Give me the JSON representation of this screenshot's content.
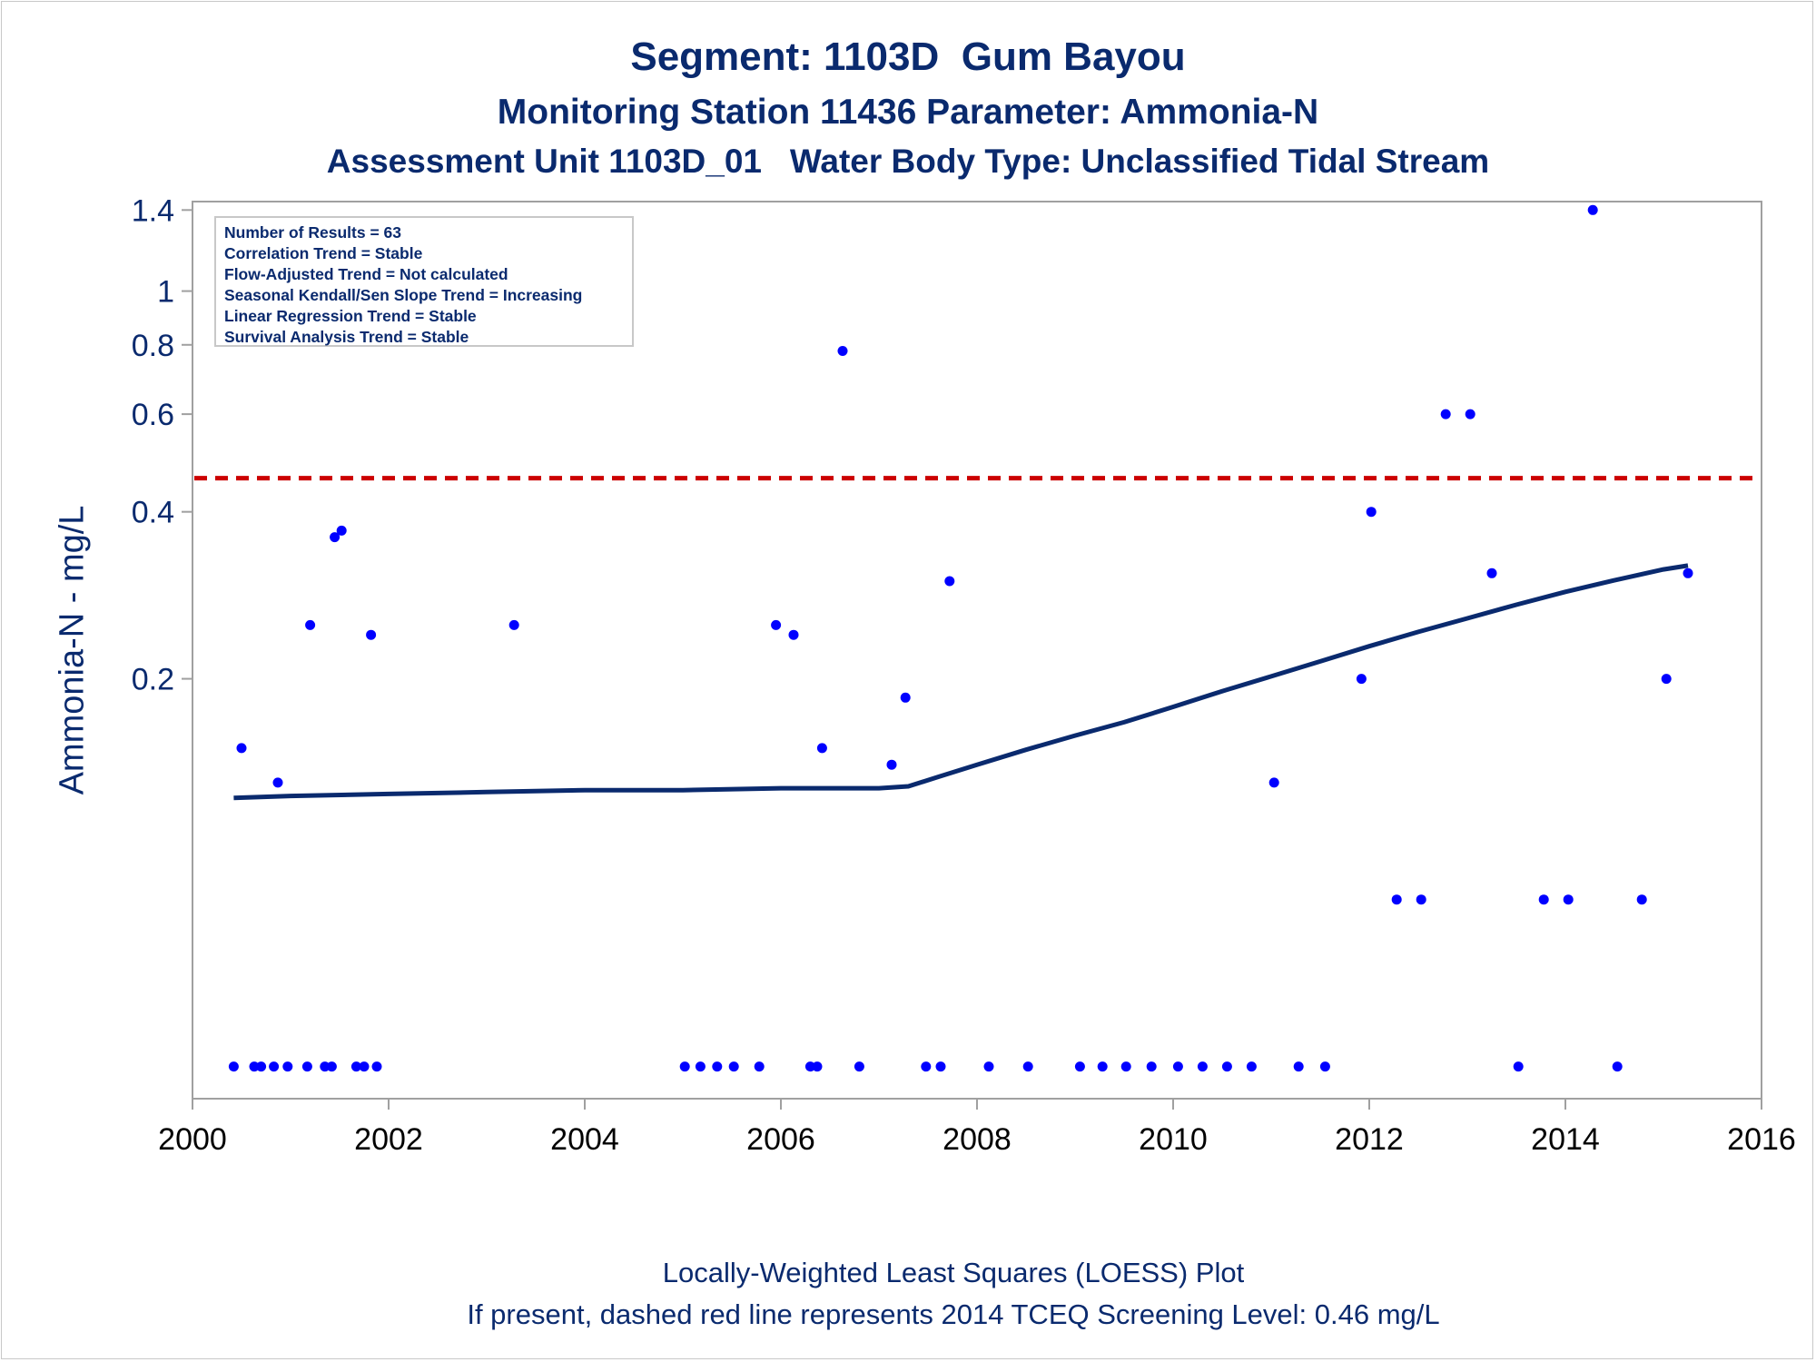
{
  "title": {
    "line1": "Segment: 1103D  Gum Bayou",
    "line2": "Monitoring Station 11436 Parameter: Ammonia-N",
    "line3": "Assessment Unit 1103D_01   Water Body Type: Unclassified Tidal Stream"
  },
  "footer": {
    "line1": "Locally-Weighted Least Squares (LOESS) Plot",
    "line2": "If present, dashed red line represents 2014 TCEQ Screening Level: 0.46 mg/L"
  },
  "stats": [
    "Number of Results = 63",
    "Correlation Trend = Stable",
    "Flow-Adjusted Trend = Not calculated",
    "Seasonal Kendall/Sen Slope Trend = Increasing",
    "Linear Regression Trend = Stable",
    "Survival Analysis Trend = Stable"
  ],
  "colors": {
    "points": "#0000ff",
    "loess": "#0a2a6e",
    "screening": "#cc0000",
    "text": "#0a2a6e",
    "frame": "#a0a0a0"
  },
  "chart_data": {
    "type": "scatter",
    "ylabel": "Ammonia-N - mg/L",
    "xlabel": "",
    "xlim": [
      2000,
      2016
    ],
    "ylim": [
      0.035,
      1.45
    ],
    "y_scale": "log",
    "x_ticks": [
      2000,
      2002,
      2004,
      2006,
      2008,
      2010,
      2012,
      2014,
      2016
    ],
    "y_ticks": [
      {
        "value": 0.2,
        "label": "0.2"
      },
      {
        "value": 0.4,
        "label": "0.4"
      },
      {
        "value": 0.6,
        "label": "0.6"
      },
      {
        "value": 0.8,
        "label": "0.8"
      },
      {
        "value": 1.0,
        "label": "1"
      },
      {
        "value": 1.4,
        "label": "1.4"
      }
    ],
    "screening_level": 0.46,
    "points": [
      [
        2000.42,
        0.04
      ],
      [
        2000.5,
        0.15
      ],
      [
        2000.63,
        0.04
      ],
      [
        2000.7,
        0.04
      ],
      [
        2000.83,
        0.04
      ],
      [
        2000.87,
        0.13
      ],
      [
        2000.97,
        0.04
      ],
      [
        2001.17,
        0.04
      ],
      [
        2001.2,
        0.25
      ],
      [
        2001.35,
        0.04
      ],
      [
        2001.42,
        0.04
      ],
      [
        2001.45,
        0.36
      ],
      [
        2001.52,
        0.37
      ],
      [
        2001.67,
        0.04
      ],
      [
        2001.75,
        0.04
      ],
      [
        2001.82,
        0.24
      ],
      [
        2001.88,
        0.04
      ],
      [
        2003.28,
        0.25
      ],
      [
        2005.02,
        0.04
      ],
      [
        2005.18,
        0.04
      ],
      [
        2005.35,
        0.04
      ],
      [
        2005.52,
        0.04
      ],
      [
        2005.78,
        0.04
      ],
      [
        2005.95,
        0.25
      ],
      [
        2006.13,
        0.24
      ],
      [
        2006.3,
        0.04
      ],
      [
        2006.37,
        0.04
      ],
      [
        2006.42,
        0.15
      ],
      [
        2006.63,
        0.78
      ],
      [
        2006.8,
        0.04
      ],
      [
        2007.13,
        0.14
      ],
      [
        2007.27,
        0.185
      ],
      [
        2007.48,
        0.04
      ],
      [
        2007.63,
        0.04
      ],
      [
        2007.72,
        0.3
      ],
      [
        2008.12,
        0.04
      ],
      [
        2008.52,
        0.04
      ],
      [
        2009.05,
        0.04
      ],
      [
        2009.28,
        0.04
      ],
      [
        2009.52,
        0.04
      ],
      [
        2009.78,
        0.04
      ],
      [
        2010.05,
        0.04
      ],
      [
        2010.3,
        0.04
      ],
      [
        2010.55,
        0.04
      ],
      [
        2010.8,
        0.04
      ],
      [
        2011.03,
        0.13
      ],
      [
        2011.28,
        0.04
      ],
      [
        2011.55,
        0.04
      ],
      [
        2011.92,
        0.2
      ],
      [
        2012.02,
        0.4
      ],
      [
        2012.28,
        0.08
      ],
      [
        2012.53,
        0.08
      ],
      [
        2012.78,
        0.6
      ],
      [
        2013.03,
        0.6
      ],
      [
        2013.25,
        0.31
      ],
      [
        2013.52,
        0.04
      ],
      [
        2013.78,
        0.08
      ],
      [
        2014.03,
        0.08
      ],
      [
        2014.28,
        1.4
      ],
      [
        2014.53,
        0.04
      ],
      [
        2014.78,
        0.08
      ],
      [
        2015.03,
        0.2
      ],
      [
        2015.25,
        0.31
      ]
    ],
    "loess": [
      [
        2000.42,
        0.122
      ],
      [
        2001.0,
        0.123
      ],
      [
        2002.0,
        0.124
      ],
      [
        2003.0,
        0.125
      ],
      [
        2004.0,
        0.126
      ],
      [
        2005.0,
        0.126
      ],
      [
        2006.0,
        0.127
      ],
      [
        2007.0,
        0.127
      ],
      [
        2007.3,
        0.128
      ],
      [
        2007.6,
        0.133
      ],
      [
        2008.0,
        0.14
      ],
      [
        2008.5,
        0.149
      ],
      [
        2009.0,
        0.158
      ],
      [
        2009.5,
        0.167
      ],
      [
        2010.0,
        0.178
      ],
      [
        2010.5,
        0.19
      ],
      [
        2011.0,
        0.202
      ],
      [
        2011.5,
        0.215
      ],
      [
        2012.0,
        0.229
      ],
      [
        2012.5,
        0.243
      ],
      [
        2013.0,
        0.257
      ],
      [
        2013.5,
        0.272
      ],
      [
        2014.0,
        0.287
      ],
      [
        2014.5,
        0.301
      ],
      [
        2015.0,
        0.315
      ],
      [
        2015.25,
        0.32
      ]
    ]
  }
}
